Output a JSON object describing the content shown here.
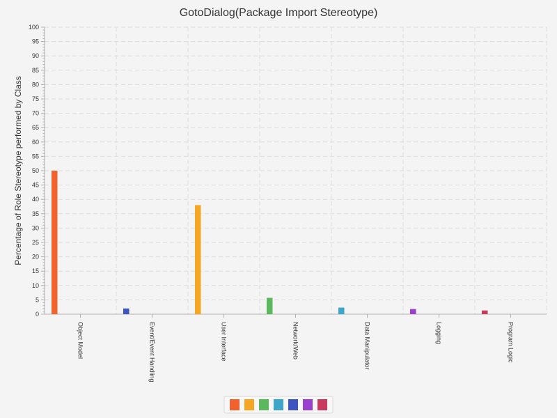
{
  "chart_data": {
    "type": "bar",
    "title": "GotoDialog(Package Import Stereotype)",
    "xlabel": "",
    "ylabel": "Percentage of Role Stereotype performed by Class",
    "ylim": [
      0,
      100
    ],
    "yticks": [
      0,
      5,
      10,
      15,
      20,
      25,
      30,
      35,
      40,
      45,
      50,
      55,
      60,
      65,
      70,
      75,
      80,
      85,
      90,
      95,
      100
    ],
    "categories": [
      "Object Model",
      "Event/Event Handling",
      "User Interface",
      "Network/Web",
      "Data Manipulator",
      "Logging",
      "Program Logic"
    ],
    "series": [
      {
        "values": [
          50,
          0,
          0,
          0,
          0,
          0,
          0
        ],
        "color": "#f0622e"
      },
      {
        "values": [
          0,
          0,
          38,
          0,
          0,
          0,
          0
        ],
        "color": "#f5a623"
      },
      {
        "values": [
          0,
          0,
          0,
          5.7,
          0,
          0,
          0
        ],
        "color": "#5cb85c"
      },
      {
        "values": [
          0,
          0,
          0,
          0,
          2.3,
          0,
          0
        ],
        "color": "#3ea6c8"
      },
      {
        "values": [
          0,
          2,
          0,
          0,
          0,
          0,
          0
        ],
        "color": "#3c55c0"
      },
      {
        "values": [
          0,
          0,
          0,
          0,
          0,
          1.8,
          0
        ],
        "color": "#9b3fd0"
      },
      {
        "values": [
          0,
          0,
          0,
          0,
          0,
          0,
          1.3
        ],
        "color": "#c83a5e"
      }
    ],
    "grid": true,
    "legend_position": "bottom"
  }
}
